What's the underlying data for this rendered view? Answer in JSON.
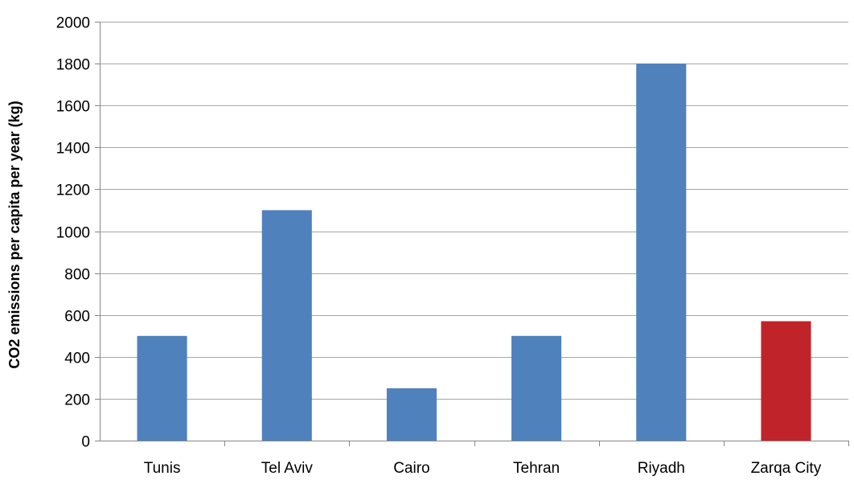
{
  "chart_data": {
    "type": "bar",
    "title": "",
    "xlabel": "",
    "ylabel": "CO2 emissions per capita per year (kg)",
    "categories": [
      "Tunis",
      "Tel Aviv",
      "Cairo",
      "Tehran",
      "Riyadh",
      "Zarqa City"
    ],
    "values": [
      500,
      1100,
      250,
      500,
      1800,
      570
    ],
    "colors": [
      "#4F81BD",
      "#4F81BD",
      "#4F81BD",
      "#4F81BD",
      "#4F81BD",
      "#C0232A"
    ],
    "ylim": [
      0,
      2000
    ],
    "yticks": [
      0,
      200,
      400,
      600,
      800,
      1000,
      1200,
      1400,
      1600,
      1800,
      2000
    ],
    "grid": true,
    "gridline_color": "#A6A6A6",
    "axis_color": "#868686"
  }
}
